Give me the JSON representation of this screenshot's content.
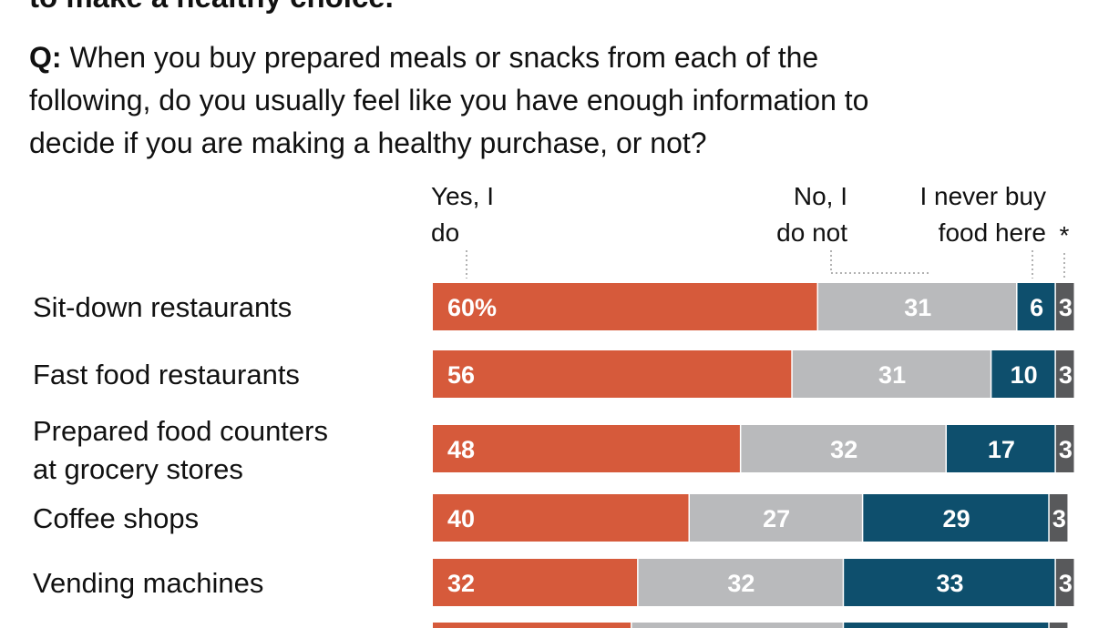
{
  "intro_fragment": "to make a healthy choice.",
  "question": {
    "prefix": "Q:",
    "text": " When you buy prepared meals or snacks from each of the following, do you usually feel like you have enough information to decide if you are making a healthy purchase, or not?",
    "lines": [
      "When you buy prepared meals or snacks from each of the",
      "following, do you usually feel like you have enough information to",
      "decide if you are making a healthy purchase, or not?"
    ]
  },
  "chart_data": {
    "type": "bar",
    "orientation": "horizontal",
    "stacked": true,
    "categories": [
      [
        "Sit-down restaurants"
      ],
      [
        "Fast food restaurants"
      ],
      [
        "Prepared food counters",
        "at grocery stores"
      ],
      [
        "Coffee shops"
      ],
      [
        "Vending machines"
      ]
    ],
    "series": [
      {
        "name": "Yes, I do",
        "header_lines": [
          "Yes, I",
          "do"
        ],
        "color": "#d65a3b",
        "values": [
          60,
          56,
          48,
          40,
          32
        ],
        "labels": [
          "60%",
          "56",
          "48",
          "40",
          "32"
        ]
      },
      {
        "name": "No, I do not",
        "header_lines": [
          "No, I",
          "do not"
        ],
        "color": "#b9babc",
        "values": [
          31,
          31,
          32,
          27,
          32
        ],
        "labels": [
          "31",
          "31",
          "32",
          "27",
          "32"
        ]
      },
      {
        "name": "I never buy food here",
        "header_lines": [
          "I never buy",
          "food here"
        ],
        "color": "#0e4f6d",
        "values": [
          6,
          10,
          17,
          29,
          33
        ],
        "labels": [
          "6",
          "10",
          "17",
          "29",
          "33"
        ]
      },
      {
        "name": "*",
        "header_lines": [
          "*"
        ],
        "color": "#58595b",
        "values": [
          3,
          3,
          3,
          3,
          3
        ],
        "labels": [
          "3",
          "3",
          "3",
          "3",
          "3"
        ]
      }
    ],
    "xlim": [
      0,
      100
    ],
    "grid": false,
    "legend": "top"
  }
}
